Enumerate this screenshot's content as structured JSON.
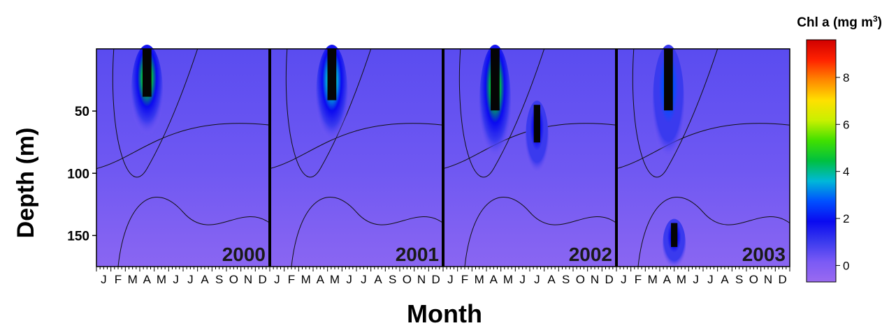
{
  "chart_data": {
    "type": "heatmap",
    "xlabel": "Month",
    "ylabel": "Depth (m)",
    "colorbar": {
      "title": "Chl a (mg m",
      "title_sup": "3",
      "title_close": ")",
      "ticks": [
        0,
        2,
        4,
        6,
        8
      ],
      "range": [
        -0.7,
        9.6
      ],
      "colors": [
        "#9a6af0",
        "#7a5af5",
        "#3a3aee",
        "#0a0af0",
        "#0050ff",
        "#00b8d8",
        "#00c040",
        "#40e000",
        "#c8f000",
        "#ffe000",
        "#ff8800",
        "#ff2200",
        "#d00000"
      ]
    },
    "ylim": [
      0,
      175
    ],
    "yticks": [
      50,
      100,
      150
    ],
    "panels": [
      {
        "year": "2000",
        "month_labels": [
          "J",
          "F",
          "M",
          "A",
          "M",
          "J",
          "J",
          "A",
          "S",
          "O",
          "N",
          "D"
        ],
        "bloom": {
          "month": 3.5,
          "top": 0,
          "bottom": 70,
          "peak": 7.5
        }
      },
      {
        "year": "2001",
        "month_labels": [
          "J",
          "F",
          "M",
          "A",
          "M",
          "J",
          "J",
          "A",
          "S",
          "O",
          "N",
          "D"
        ],
        "bloom": {
          "month": 4.3,
          "top": 0,
          "bottom": 75,
          "peak": 6
        }
      },
      {
        "year": "2002",
        "month_labels": [
          "J",
          "F",
          "M",
          "A",
          "M",
          "J",
          "J",
          "A",
          "S",
          "O",
          "N",
          "D"
        ],
        "bloom": {
          "month": 3.6,
          "top": 0,
          "bottom": 90,
          "peak": 7
        },
        "secondary": {
          "month": 6.5,
          "top": 45,
          "bottom": 100,
          "peak": 3.5
        }
      },
      {
        "year": "2003",
        "month_labels": [
          "J",
          "F",
          "M",
          "A",
          "M",
          "J",
          "J",
          "A",
          "S",
          "O",
          "N",
          "D"
        ],
        "bloom": {
          "month": 3.6,
          "top": 0,
          "bottom": 90,
          "peak": 4.5
        },
        "secondary": {
          "month": 4.0,
          "top": 140,
          "bottom": 175,
          "peak": 3
        }
      }
    ],
    "background_level": 0.3,
    "grid": false,
    "legend": "right"
  }
}
